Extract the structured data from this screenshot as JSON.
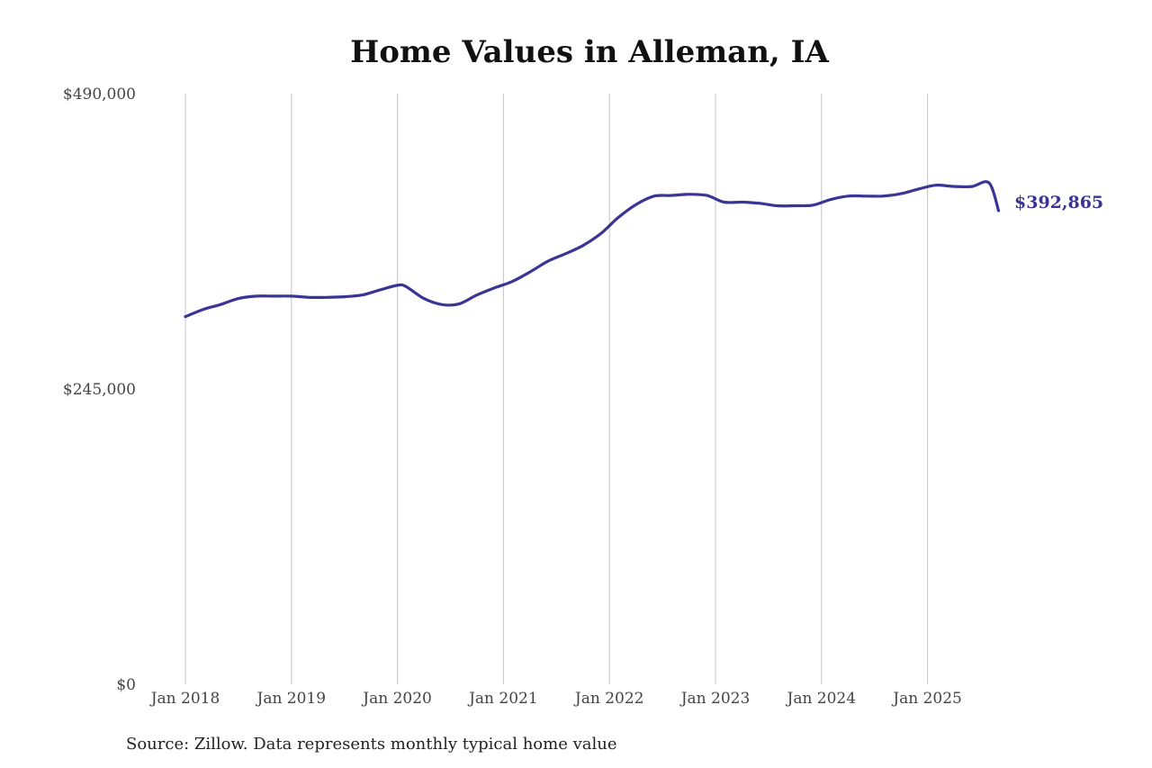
{
  "chart_data": {
    "type": "line",
    "title": "Home Values in Alleman, IA",
    "xlabel": "",
    "ylabel": "",
    "ylim": [
      0,
      490000
    ],
    "y_ticks": [
      {
        "value": 0,
        "label": "$0"
      },
      {
        "value": 245000,
        "label": "$245,000"
      },
      {
        "value": 490000,
        "label": "$490,000"
      }
    ],
    "x_ticks": [
      {
        "value": 2018,
        "label": "Jan 2018"
      },
      {
        "value": 2019,
        "label": "Jan 2019"
      },
      {
        "value": 2020,
        "label": "Jan 2020"
      },
      {
        "value": 2021,
        "label": "Jan 2021"
      },
      {
        "value": 2022,
        "label": "Jan 2022"
      },
      {
        "value": 2023,
        "label": "Jan 2023"
      },
      {
        "value": 2024,
        "label": "Jan 2024"
      },
      {
        "value": 2025,
        "label": "Jan 2025"
      }
    ],
    "grid": "vertical",
    "color": "#3a3595",
    "end_label": "$392,865",
    "series": [
      {
        "x": [
          2018.0,
          2018.17,
          2018.33,
          2018.5,
          2018.67,
          2018.83,
          2019.0,
          2019.17,
          2019.33,
          2019.5,
          2019.67,
          2019.83,
          2020.0,
          2020.08,
          2020.25,
          2020.42,
          2020.58,
          2020.75,
          2020.92,
          2021.08,
          2021.25,
          2021.42,
          2021.58,
          2021.75,
          2021.92,
          2022.08,
          2022.25,
          2022.42,
          2022.58,
          2022.75,
          2022.92,
          2023.08,
          2023.25,
          2023.42,
          2023.58,
          2023.75,
          2023.92,
          2024.08,
          2024.25,
          2024.42,
          2024.58,
          2024.75,
          2024.92,
          2025.08,
          2025.25,
          2025.42,
          2025.58,
          2025.67
        ],
        "values": [
          305000,
          311000,
          315000,
          320000,
          322000,
          322000,
          322000,
          321000,
          321000,
          321500,
          323000,
          327000,
          331000,
          330000,
          320000,
          315000,
          315500,
          323000,
          329000,
          334000,
          342000,
          351000,
          357000,
          364000,
          374000,
          387000,
          398000,
          405000,
          405500,
          406500,
          405500,
          400000,
          400000,
          399000,
          397000,
          397000,
          397500,
          402000,
          405000,
          405000,
          405000,
          407000,
          411000,
          414000,
          413000,
          413000,
          416000,
          392865
        ]
      }
    ]
  },
  "source": "Source: Zillow. Data represents monthly typical home value"
}
